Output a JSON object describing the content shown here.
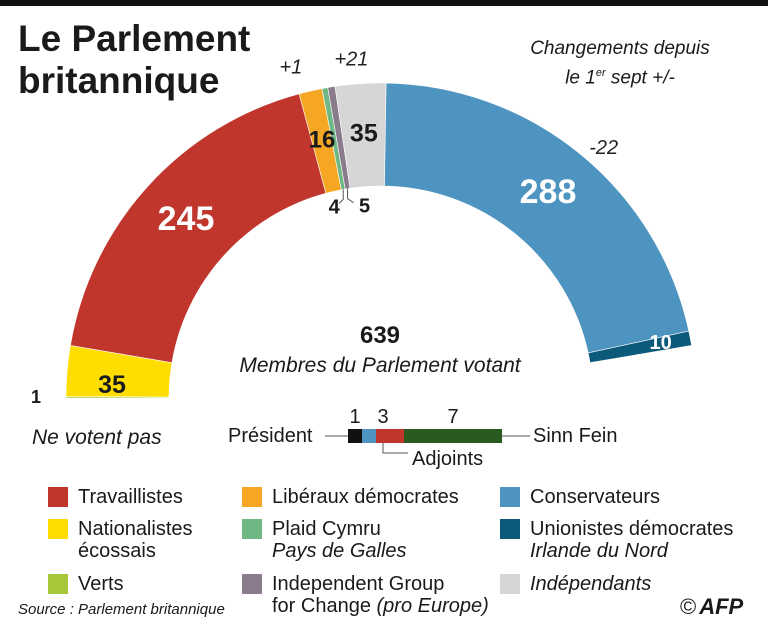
{
  "title_line1": "Le Parlement",
  "title_line2": "britannique",
  "changes_note": {
    "line1": "Changements depuis",
    "line2_prefix": "le 1",
    "line2_sup": "er",
    "line2_suffix": " sept +/-"
  },
  "total": "639",
  "total_label": "Membres du Parlement votant",
  "non_voting_label": "Ne votent pas",
  "source": "Source : Parlement britannique",
  "copyright": "©",
  "agency": "AFP",
  "colors": {
    "labour": "#c0362c",
    "libdem": "#f5a623",
    "plaid": "#6fb886",
    "tig": "#8a7b8c",
    "independent": "#d6d6d6",
    "conservative": "#4e94c0",
    "dup": "#0c5a7a",
    "snp": "#ffdd00",
    "green": "#a6c83a",
    "speaker": "#111111",
    "sinnfein": "#2a5a20"
  },
  "chart_data": {
    "type": "parliament_semicircle",
    "title": "Le Parlement britannique",
    "total_voting": 639,
    "voting_order": [
      "Travaillistes",
      "Libéraux démocrates",
      "Plaid Cymru",
      "Independent Group for Change",
      "Indépendants",
      "Conservateurs",
      "Unionistes démocrates"
    ],
    "voting_values": [
      245,
      16,
      4,
      5,
      35,
      288,
      10
    ],
    "voting_labels": [
      "245",
      "16",
      "4",
      "5",
      "35",
      "288",
      "10"
    ],
    "voting_color_keys": [
      "labour",
      "libdem",
      "plaid",
      "tig",
      "independent",
      "conservative",
      "dup"
    ],
    "non_voting_order": [
      "Verts",
      "Nationalistes écossais"
    ],
    "non_voting_values": [
      1,
      35
    ],
    "non_voting_labels": [
      "1",
      "35"
    ],
    "non_voting_color_keys": [
      "green",
      "snp"
    ],
    "changes": [
      {
        "party": "Libéraux démocrates",
        "label": "+1"
      },
      {
        "party": "Indépendants",
        "label": "+21"
      },
      {
        "party": "Conservateurs",
        "label": "-22"
      }
    ],
    "sub_bar": {
      "order": [
        "Président",
        "Adjoints",
        "Sinn Fein"
      ],
      "values": [
        1,
        3,
        7
      ],
      "labels": [
        "1",
        "3",
        "7"
      ],
      "color_keys": [
        "speaker",
        "adjoints",
        "sinnfein"
      ],
      "names": {
        "speaker": "Président",
        "deputies": "Adjoints",
        "sinnfein": "Sinn Fein"
      }
    },
    "legend": [
      {
        "key": "labour",
        "label": "Travaillistes",
        "sub": ""
      },
      {
        "key": "libdem",
        "label": "Libéraux démocrates",
        "sub": ""
      },
      {
        "key": "conservative",
        "label": "Conservateurs",
        "sub": ""
      },
      {
        "key": "snp",
        "label": "Nationalistes",
        "sub": "écossais",
        "sub_italic": false
      },
      {
        "key": "plaid",
        "label": "Plaid Cymru",
        "sub": "Pays de Galles",
        "sub_italic": true
      },
      {
        "key": "dup",
        "label": "Unionistes démocrates",
        "sub": "Irlande du Nord",
        "sub_italic": true
      },
      {
        "key": "green",
        "label": "Verts",
        "sub": ""
      },
      {
        "key": "tig",
        "label": "Independent Group",
        "sub": "for Change",
        "sub_suffix": " (pro Europe)"
      },
      {
        "key": "independent",
        "label": "Indépendants",
        "sub": "",
        "italic": true
      }
    ]
  }
}
